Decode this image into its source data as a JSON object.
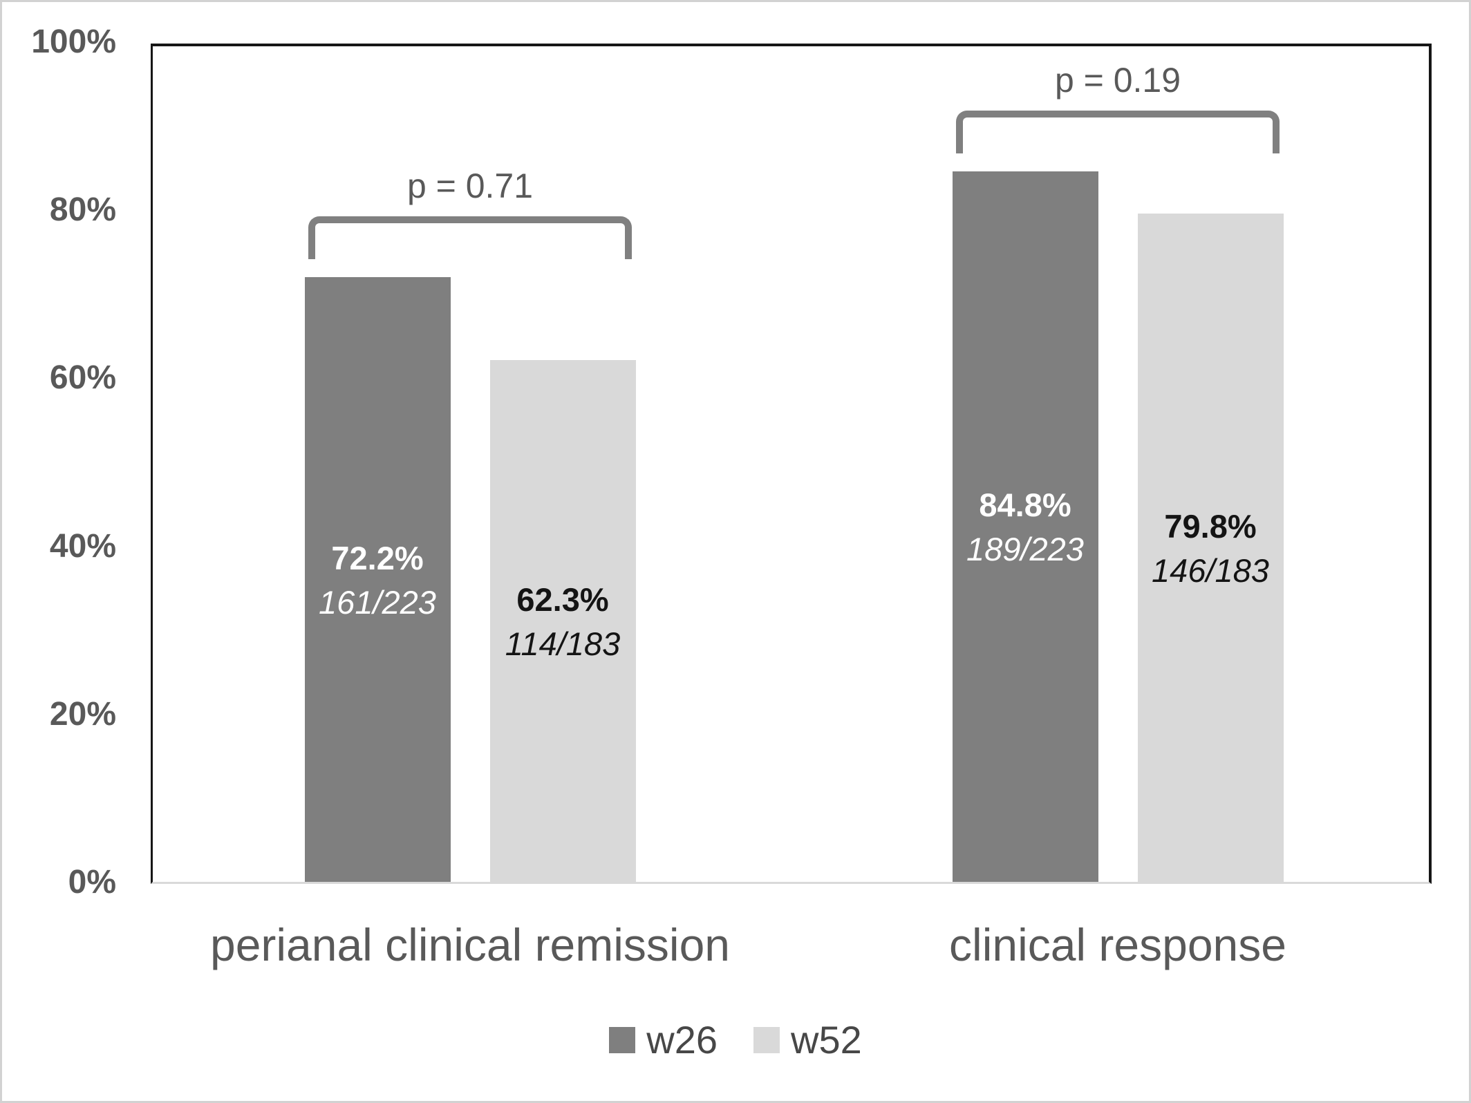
{
  "figure": {
    "background_color": "#ffffff",
    "outer_border_color": "#d2d2d2",
    "axis_line_color": "#161616",
    "baseline_color": "#d9d9d9",
    "text_color": "#595959",
    "annotation_color": "#808080"
  },
  "chart_data": {
    "type": "bar",
    "title": "",
    "categories": [
      "perianal clinical remission",
      "clinical response"
    ],
    "series": [
      {
        "name": "w26",
        "color": "#7f7f7f",
        "values": [
          72.2,
          84.8
        ],
        "value_labels": [
          "72.2%",
          "84.8%"
        ],
        "fraction_labels": [
          "161/223",
          "189/223"
        ],
        "label_text_color": "#ffffff"
      },
      {
        "name": "w52",
        "color": "#d9d9d9",
        "values": [
          62.3,
          79.8
        ],
        "value_labels": [
          "62.3%",
          "79.8%"
        ],
        "fraction_labels": [
          "114/183",
          "146/183"
        ],
        "label_text_color": "#141414"
      }
    ],
    "p_value_annotations": [
      {
        "category": "perianal clinical remission",
        "label": "p = 0.71"
      },
      {
        "category": "clinical response",
        "label": "p = 0.19"
      }
    ],
    "y_axis": {
      "ticks": [
        "100%",
        "80%",
        "60%",
        "40%",
        "20%",
        "0%"
      ],
      "tick_values": [
        100,
        80,
        60,
        40,
        20,
        0
      ],
      "range": [
        0,
        100
      ]
    },
    "legend": {
      "position": "bottom",
      "entries": [
        {
          "label": "w26",
          "color": "#7f7f7f"
        },
        {
          "label": "w52",
          "color": "#d9d9d9"
        }
      ]
    },
    "grid": false,
    "legend_text_color": "#474747"
  }
}
